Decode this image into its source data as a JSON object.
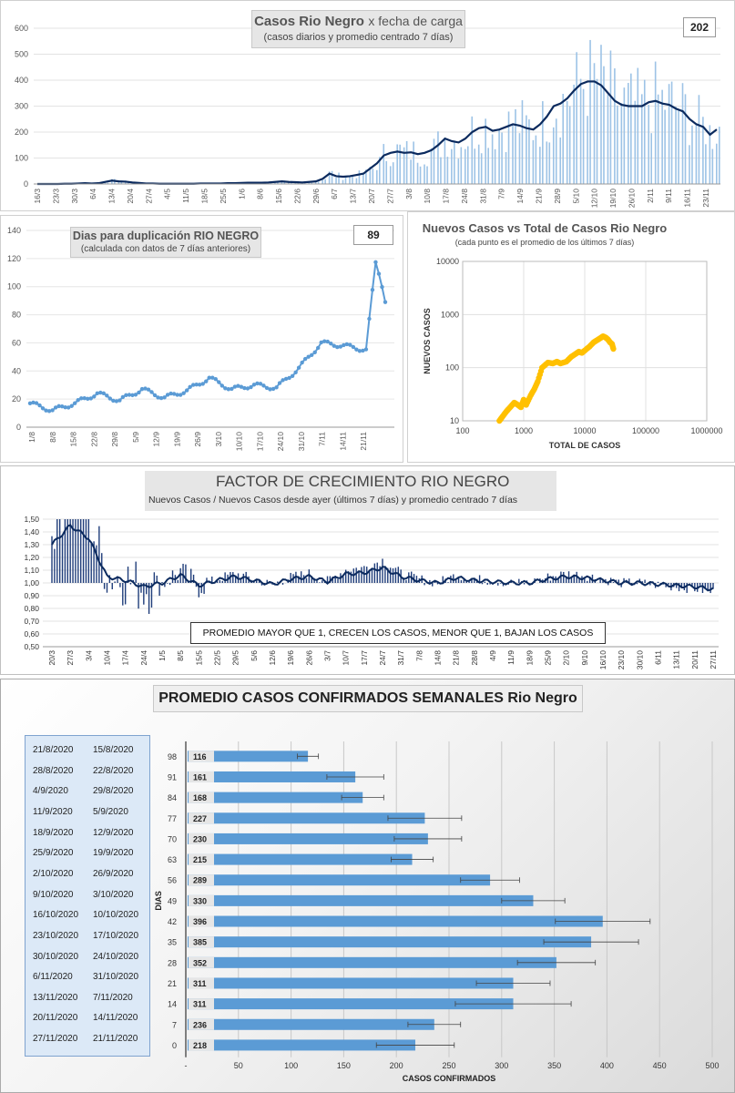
{
  "panel1": {
    "title_bold": "Casos Rio Negro",
    "title_rest": "x fecha de carga",
    "subtitle": "(casos diarios y promedio centrado 7 días)",
    "value_box": "202",
    "y_ticks": [
      "0",
      "100",
      "200",
      "300",
      "400",
      "500",
      "600"
    ],
    "x_ticks": [
      "16/3",
      "23/3",
      "30/3",
      "6/4",
      "13/4",
      "20/4",
      "27/4",
      "4/5",
      "11/5",
      "18/5",
      "25/5",
      "1/6",
      "8/6",
      "15/6",
      "22/6",
      "29/6",
      "6/7",
      "13/7",
      "20/7",
      "27/7",
      "3/8",
      "10/8",
      "17/8",
      "24/8",
      "31/8",
      "7/9",
      "14/9",
      "21/9",
      "28/9",
      "5/10",
      "12/10",
      "19/10",
      "26/10",
      "2/11",
      "9/11",
      "16/11",
      "23/11"
    ],
    "bar_color": "#9dc3e6",
    "line_color": "#0b2a5e"
  },
  "panel2": {
    "title": "Dias para duplicación RIO NEGRO",
    "subtitle": "(calculada con datos de 7 días anteriores)",
    "value_box": "89",
    "y_ticks": [
      "0",
      "20",
      "40",
      "60",
      "80",
      "100",
      "120",
      "140"
    ],
    "x_ticks": [
      "1/8",
      "8/8",
      "15/8",
      "22/8",
      "29/8",
      "5/9",
      "12/9",
      "19/9",
      "26/9",
      "3/10",
      "10/10",
      "17/10",
      "24/10",
      "31/10",
      "7/11",
      "14/11",
      "21/11"
    ],
    "color": "#5b9bd5"
  },
  "panel3": {
    "title": "Nuevos Casos vs Total de Casos Rio Negro",
    "subtitle": "(cada punto es el promedio de los últimos 7 días)",
    "xlabel": "TOTAL DE CASOS",
    "ylabel": "NUEVOS CASOS",
    "x_ticks": [
      "100",
      "1000",
      "10000",
      "100000",
      "1000000"
    ],
    "y_ticks": [
      "10",
      "100",
      "1000",
      "10000"
    ],
    "color": "#ffc000"
  },
  "panel4": {
    "title": "FACTOR DE CRECIMIENTO RIO NEGRO",
    "subtitle": "Nuevos Casos  / Nuevos Casos desde ayer (últimos 7 días) y promedio  centrado 7 días",
    "note": "PROMEDIO MAYOR QUE 1, CRECEN LOS CASOS, MENOR QUE 1, BAJAN LOS CASOS",
    "y_ticks": [
      "0,50",
      "0,60",
      "0,70",
      "0,80",
      "0,90",
      "1,00",
      "1,10",
      "1,20",
      "1,30",
      "1,40",
      "1,50"
    ],
    "x_ticks": [
      "20/3",
      "27/3",
      "3/4",
      "10/4",
      "17/4",
      "24/4",
      "1/5",
      "8/5",
      "15/5",
      "22/5",
      "29/5",
      "5/6",
      "12/6",
      "19/6",
      "26/6",
      "3/7",
      "10/7",
      "17/7",
      "24/7",
      "31/7",
      "7/8",
      "14/8",
      "21/8",
      "28/8",
      "4/9",
      "11/9",
      "18/9",
      "25/9",
      "2/10",
      "9/10",
      "16/10",
      "23/10",
      "30/10",
      "6/11",
      "13/11",
      "20/11",
      "27/11"
    ],
    "color": "#0b2a5e"
  },
  "panel5": {
    "title": "PROMEDIO CASOS CONFIRMADOS SEMANALES Rio Negro",
    "xlabel": "CASOS CONFIRMADOS",
    "ylabel": "DIAS",
    "x_ticks": [
      "-",
      "50",
      "100",
      "150",
      "200",
      "250",
      "300",
      "350",
      "400",
      "450",
      "500"
    ],
    "bar_color": "#5b9bd5",
    "rows": [
      {
        "d1": "21/8/2020",
        "d2": "15/8/2020",
        "dias": "98",
        "value": 116
      },
      {
        "d1": "28/8/2020",
        "d2": "22/8/2020",
        "dias": "91",
        "value": 161
      },
      {
        "d1": "4/9/2020",
        "d2": "29/8/2020",
        "dias": "84",
        "value": 168
      },
      {
        "d1": "11/9/2020",
        "d2": "5/9/2020",
        "dias": "77",
        "value": 227
      },
      {
        "d1": "18/9/2020",
        "d2": "12/9/2020",
        "dias": "70",
        "value": 230
      },
      {
        "d1": "25/9/2020",
        "d2": "19/9/2020",
        "dias": "63",
        "value": 215
      },
      {
        "d1": "2/10/2020",
        "d2": "26/9/2020",
        "dias": "56",
        "value": 289
      },
      {
        "d1": "9/10/2020",
        "d2": "3/10/2020",
        "dias": "49",
        "value": 330
      },
      {
        "d1": "16/10/2020",
        "d2": "10/10/2020",
        "dias": "42",
        "value": 396
      },
      {
        "d1": "23/10/2020",
        "d2": "17/10/2020",
        "dias": "35",
        "value": 385
      },
      {
        "d1": "30/10/2020",
        "d2": "24/10/2020",
        "dias": "28",
        "value": 352
      },
      {
        "d1": "6/11/2020",
        "d2": "31/10/2020",
        "dias": "21",
        "value": 311
      },
      {
        "d1": "13/11/2020",
        "d2": "7/11/2020",
        "dias": "14",
        "value": 311
      },
      {
        "d1": "20/11/2020",
        "d2": "14/11/2020",
        "dias": "7",
        "value": 236
      },
      {
        "d1": "27/11/2020",
        "d2": "21/11/2020",
        "dias": "0",
        "value": 218
      }
    ]
  },
  "chart_data": [
    {
      "type": "bar",
      "title": "Casos Rio Negro x fecha de carga",
      "subtitle": "(casos diarios y promedio centrado 7 días)",
      "ylim": [
        0,
        600
      ],
      "x_start": "16/3",
      "x_end": "27/11",
      "series": [
        {
          "values": [
            0,
            0,
            0,
            0,
            1,
            1,
            2,
            3,
            2,
            3,
            8,
            13,
            10,
            9,
            6,
            4,
            2,
            2,
            1,
            1,
            1,
            1,
            1,
            1,
            2,
            2,
            2,
            2,
            3,
            3,
            4,
            5,
            5,
            5,
            6,
            8,
            10,
            8,
            7,
            6,
            8,
            10,
            20,
            40,
            30,
            28,
            30,
            35,
            40,
            60,
            80,
            110,
            120,
            125,
            120,
            122,
            115,
            120,
            130,
            150,
            175,
            165,
            160,
            175,
            200,
            215,
            220,
            205,
            210,
            220,
            230,
            225,
            215,
            210,
            230,
            260,
            300,
            310,
            330,
            360,
            385,
            395,
            395,
            380,
            350,
            320,
            305,
            300,
            300,
            300,
            315,
            320,
            310,
            305,
            290,
            280,
            250,
            230,
            220,
            190,
            210
          ],
          "x": [
            "16/3",
            "18/3",
            "21/3",
            "23/3",
            "26/3",
            "28/3",
            "31/3",
            "2/4",
            "5/4",
            "8/4",
            "10/4",
            "13/4",
            "15/4",
            "18/4",
            "20/4",
            "23/4",
            "26/4",
            "28/4",
            "1/5",
            "3/5",
            "6/5",
            "8/5",
            "11/5",
            "14/5",
            "16/5",
            "19/5",
            "21/5",
            "24/5",
            "26/5",
            "29/5",
            "1/6",
            "3/6",
            "6/6",
            "8/6",
            "11/6",
            "13/6",
            "16/6",
            "19/6",
            "21/6",
            "24/6",
            "26/6",
            "29/6",
            "1/7",
            "4/7",
            "7/7",
            "9/7",
            "12/7",
            "14/7",
            "17/7",
            "19/7",
            "22/7",
            "25/7",
            "27/7",
            "30/7",
            "1/8",
            "4/8",
            "6/8",
            "9/8",
            "12/8",
            "14/8",
            "17/8",
            "19/8",
            "22/8",
            "24/8",
            "27/8",
            "30/8",
            "1/9",
            "4/9",
            "6/9",
            "9/9",
            "11/9",
            "14/9",
            "17/9",
            "19/9",
            "22/9",
            "24/9",
            "27/9",
            "29/9",
            "2/10",
            "5/10",
            "7/10",
            "10/10",
            "12/10",
            "15/10",
            "17/10",
            "20/10",
            "23/10",
            "25/10",
            "28/10",
            "30/10",
            "2/11",
            "4/11",
            "7/11",
            "10/11",
            "12/11",
            "15/11",
            "17/11",
            "20/11",
            "22/11",
            "25/11",
            "27/11"
          ]
        }
      ]
    },
    {
      "type": "line",
      "title": "Dias para duplicación RIO NEGRO",
      "subtitle": "(calculada con datos de 7 días anteriores)",
      "ylim": [
        0,
        140
      ],
      "x": [
        "1/8",
        "8/8",
        "15/8",
        "22/8",
        "29/8",
        "5/9",
        "12/9",
        "19/9",
        "26/9",
        "3/10",
        "10/10",
        "17/10",
        "24/10",
        "31/10",
        "7/11",
        "14/11",
        "21/11",
        "24/11"
      ],
      "series": [
        {
          "values": [
            17,
            12,
            17,
            24,
            19,
            27,
            21,
            26,
            35,
            27,
            30,
            28,
            42,
            60,
            58,
            55,
            117,
            89
          ]
        }
      ]
    },
    {
      "type": "scatter",
      "title": "Nuevos Casos vs Total de Casos Rio Negro",
      "subtitle": "(cada punto es el promedio de los últimos 7 días)",
      "xlabel": "TOTAL DE CASOS",
      "ylabel": "NUEVOS CASOS",
      "x_scale": "log",
      "y_scale": "log",
      "xlim": [
        100,
        1000000
      ],
      "ylim": [
        10,
        10000
      ],
      "series": [
        {
          "x": [
            400,
            450,
            520,
            600,
            700,
            800,
            900,
            1000,
            1100,
            1300,
            1500,
            1700,
            2000,
            2500,
            3000,
            3500,
            4000,
            5000,
            6000,
            7000,
            8000,
            9000,
            10000,
            12000,
            14000,
            16000,
            18000,
            20000,
            22000,
            24000,
            26000,
            28000,
            30000
          ],
          "values": [
            10,
            12,
            15,
            18,
            22,
            20,
            18,
            25,
            20,
            30,
            40,
            55,
            100,
            125,
            120,
            130,
            120,
            130,
            160,
            180,
            200,
            190,
            210,
            250,
            300,
            330,
            360,
            390,
            370,
            340,
            300,
            280,
            210
          ]
        }
      ]
    },
    {
      "type": "line",
      "title": "FACTOR DE CRECIMIENTO RIO NEGRO",
      "subtitle": "Nuevos Casos  / Nuevos Casos desde ayer (últimos 7 días) y promedio  centrado 7 días",
      "ylim": [
        0.5,
        1.5
      ],
      "x": [
        "20/3",
        "27/3",
        "3/4",
        "10/4",
        "17/4",
        "24/4",
        "1/5",
        "8/5",
        "15/5",
        "22/5",
        "29/5",
        "5/6",
        "12/6",
        "19/6",
        "26/6",
        "3/7",
        "10/7",
        "17/7",
        "24/7",
        "31/7",
        "7/8",
        "14/8",
        "21/8",
        "28/8",
        "4/9",
        "11/9",
        "18/9",
        "25/9",
        "2/10",
        "9/10",
        "16/10",
        "23/10",
        "30/10",
        "6/11",
        "13/11",
        "20/11",
        "27/11"
      ],
      "series": [
        {
          "values": [
            1.3,
            1.45,
            1.35,
            1.05,
            1.02,
            0.97,
            1.0,
            1.06,
            0.98,
            1.02,
            1.05,
            1.02,
            0.99,
            1.03,
            1.05,
            1.01,
            1.07,
            1.08,
            1.12,
            1.05,
            1.02,
            1.0,
            1.04,
            1.02,
            1.01,
            1.0,
            1.0,
            1.03,
            1.05,
            1.04,
            1.02,
            1.0,
            1.0,
            0.99,
            0.98,
            0.97,
            0.95
          ]
        }
      ]
    },
    {
      "type": "bar",
      "orientation": "horizontal",
      "title": "PROMEDIO CASOS CONFIRMADOS SEMANALES Rio Negro",
      "xlabel": "CASOS CONFIRMADOS",
      "ylabel": "DIAS",
      "xlim": [
        0,
        500
      ],
      "categories": [
        "98",
        "91",
        "84",
        "77",
        "70",
        "63",
        "56",
        "49",
        "42",
        "35",
        "28",
        "21",
        "14",
        "7",
        "0"
      ],
      "values": [
        116,
        161,
        168,
        227,
        230,
        215,
        289,
        330,
        396,
        385,
        352,
        311,
        311,
        236,
        218
      ],
      "error_bars": "yes"
    }
  ]
}
